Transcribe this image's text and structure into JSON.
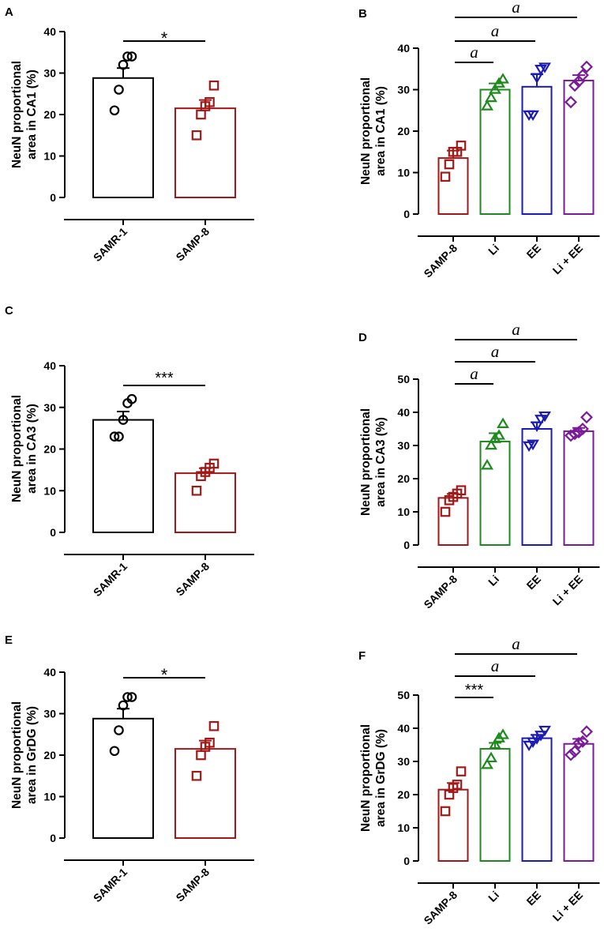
{
  "colors": {
    "SAMR-1": "#000000",
    "SAMP-8": "#a01818",
    "Li": "#1e8a1e",
    "EE": "#1a1ab4",
    "Li + EE": "#7a1a9a"
  },
  "chart_data": [
    {
      "id": "A",
      "type": "bar",
      "panel_label": "A",
      "ylabel_lines": [
        "NeuN proportional",
        "area in CA1 (%)"
      ],
      "ylim": [
        0,
        40
      ],
      "yticks": [
        0,
        10,
        20,
        30,
        40
      ],
      "categories": [
        "SAMR-1",
        "SAMP-8"
      ],
      "values": [
        28.8,
        21.5
      ],
      "errors": [
        2.4,
        2.0
      ],
      "markers": [
        "circle",
        "square"
      ],
      "points": [
        [
          21,
          26,
          32,
          34,
          34
        ],
        [
          15,
          20,
          22,
          23,
          27
        ]
      ],
      "significance": [
        {
          "from": 0,
          "to": 1,
          "label": "*"
        }
      ]
    },
    {
      "id": "B",
      "type": "bar",
      "panel_label": "B",
      "ylabel_lines": [
        "NeuN proportional",
        "area in CA1 (%)"
      ],
      "ylim": [
        0,
        40
      ],
      "yticks": [
        0,
        10,
        20,
        30,
        40
      ],
      "categories": [
        "SAMP-8",
        "Li",
        "EE",
        "Li + EE"
      ],
      "values": [
        13.5,
        30.0,
        30.7,
        32.2
      ],
      "errors": [
        1.8,
        1.5,
        3.0,
        1.3
      ],
      "markers": [
        "square",
        "triangle-up",
        "triangle-down",
        "diamond"
      ],
      "points": [
        [
          9,
          12,
          15,
          15,
          16.5
        ],
        [
          26,
          28,
          30,
          31.5,
          32.5
        ],
        [
          24,
          24,
          33,
          35,
          35.5
        ],
        [
          27,
          31,
          32,
          33.5,
          35.5
        ]
      ],
      "significance": [
        {
          "from": 0,
          "to": 1,
          "label": "a"
        },
        {
          "from": 0,
          "to": 2,
          "label": "a"
        },
        {
          "from": 0,
          "to": 3,
          "label": "a"
        }
      ]
    },
    {
      "id": "C",
      "type": "bar",
      "panel_label": "C",
      "ylabel_lines": [
        "NeuN proportional",
        "area in CA3 (%)"
      ],
      "ylim": [
        0,
        40
      ],
      "yticks": [
        0,
        10,
        20,
        30,
        40
      ],
      "categories": [
        "SAMR-1",
        "SAMP-8"
      ],
      "values": [
        27.0,
        14.2
      ],
      "errors": [
        2.0,
        1.2
      ],
      "markers": [
        "circle",
        "square"
      ],
      "points": [
        [
          23,
          23,
          27,
          31,
          32
        ],
        [
          10,
          13.5,
          14.5,
          15.5,
          16.5
        ]
      ],
      "significance": [
        {
          "from": 0,
          "to": 1,
          "label": "***"
        }
      ]
    },
    {
      "id": "D",
      "type": "bar",
      "panel_label": "D",
      "ylabel_lines": [
        "NeuN proportional",
        "area in CA3 (%)"
      ],
      "ylim": [
        0,
        50
      ],
      "yticks": [
        0,
        10,
        20,
        30,
        40,
        50
      ],
      "categories": [
        "SAMP-8",
        "Li",
        "EE",
        "Li + EE"
      ],
      "values": [
        14.2,
        31.2,
        35.0,
        34.3
      ],
      "errors": [
        1.2,
        2.5,
        2.0,
        1.0
      ],
      "markers": [
        "square",
        "triangle-up",
        "triangle-down",
        "diamond"
      ],
      "points": [
        [
          10,
          13.5,
          14.5,
          15.5,
          16.5
        ],
        [
          24,
          30,
          32,
          33,
          36.5
        ],
        [
          30,
          30.5,
          36,
          38,
          39
        ],
        [
          33,
          33.5,
          34,
          35,
          38.5
        ]
      ],
      "significance": [
        {
          "from": 0,
          "to": 1,
          "label": "a"
        },
        {
          "from": 0,
          "to": 2,
          "label": "a"
        },
        {
          "from": 0,
          "to": 3,
          "label": "a"
        }
      ]
    },
    {
      "id": "E",
      "type": "bar",
      "panel_label": "E",
      "ylabel_lines": [
        "NeuN proportional",
        "area in GrDG (%)"
      ],
      "ylim": [
        0,
        40
      ],
      "yticks": [
        0,
        10,
        20,
        30,
        40
      ],
      "categories": [
        "SAMR-1",
        "SAMP-8"
      ],
      "values": [
        28.8,
        21.5
      ],
      "errors": [
        2.4,
        2.0
      ],
      "markers": [
        "circle",
        "square"
      ],
      "points": [
        [
          21,
          26,
          32,
          34,
          34
        ],
        [
          15,
          20,
          22,
          23,
          27
        ]
      ],
      "significance": [
        {
          "from": 0,
          "to": 1,
          "label": "*"
        }
      ]
    },
    {
      "id": "F",
      "type": "bar",
      "panel_label": "F",
      "ylabel_lines": [
        "NeuN proportional",
        "area in GrDG (%)"
      ],
      "ylim": [
        0,
        50
      ],
      "yticks": [
        0,
        10,
        20,
        30,
        40,
        50
      ],
      "categories": [
        "SAMP-8",
        "Li",
        "EE",
        "Li + EE"
      ],
      "values": [
        21.5,
        33.8,
        37.0,
        35.3
      ],
      "errors": [
        2.0,
        1.8,
        1.0,
        1.5
      ],
      "markers": [
        "square",
        "triangle-up",
        "triangle-down",
        "diamond"
      ],
      "points": [
        [
          15,
          20,
          22,
          23,
          27
        ],
        [
          29,
          31,
          35,
          37,
          38
        ],
        [
          35,
          36,
          37,
          38,
          39.5
        ],
        [
          32,
          33,
          35.5,
          36,
          39
        ]
      ],
      "significance": [
        {
          "from": 0,
          "to": 1,
          "label": "***"
        },
        {
          "from": 0,
          "to": 2,
          "label": "a"
        },
        {
          "from": 0,
          "to": 3,
          "label": "a"
        }
      ]
    }
  ]
}
